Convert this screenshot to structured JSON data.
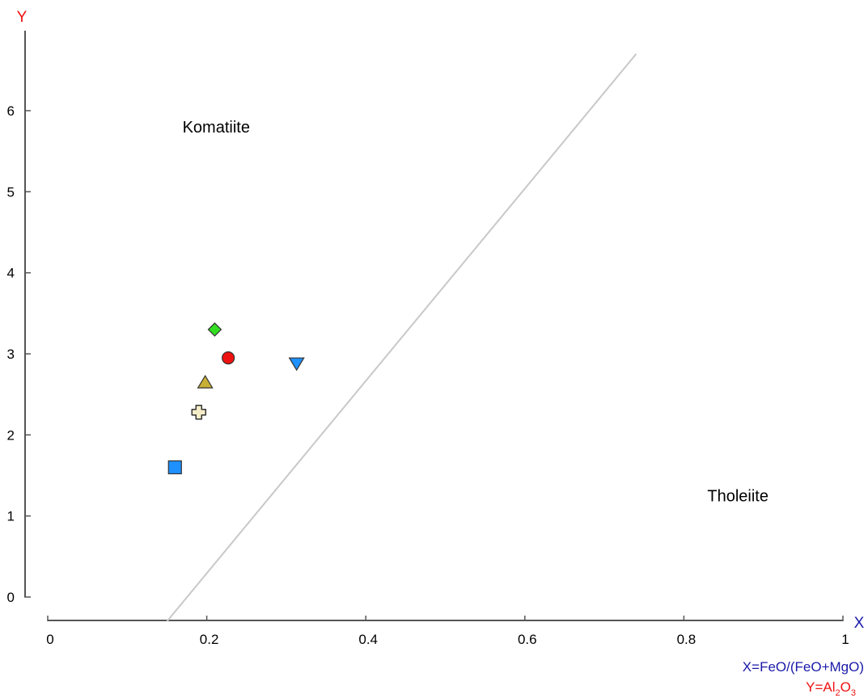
{
  "chart_data": {
    "type": "scatter",
    "title": "",
    "xlabel": "X",
    "ylabel": "Y",
    "xlim": [
      0,
      1
    ],
    "ylim": [
      0,
      7
    ],
    "x_ticks": [
      "0",
      "0.2",
      "0.4",
      "0.6",
      "0.8",
      "1"
    ],
    "y_ticks": [
      "0",
      "1",
      "2",
      "3",
      "4",
      "5",
      "6"
    ],
    "x_formula": "X=FeO/(FeO+MgO)",
    "y_formula": {
      "prefix": "Y=Al",
      "sub1": "2",
      "mid": "O",
      "sub2": "3"
    },
    "regions": [
      {
        "label": "Komatiite",
        "x": 0.2,
        "y": 5.8
      },
      {
        "label": "Tholeiite",
        "x": 0.86,
        "y": 1.25
      }
    ],
    "boundary_line": {
      "x": [
        0.15,
        0.74
      ],
      "y": [
        -0.3,
        6.7
      ],
      "color": "#c8c8c8"
    },
    "points": [
      {
        "x": 0.21,
        "y": 3.3,
        "marker": "diamond",
        "color": "#33dd22"
      },
      {
        "x": 0.227,
        "y": 2.95,
        "marker": "circle",
        "color": "#ee1111"
      },
      {
        "x": 0.313,
        "y": 2.88,
        "marker": "triangle-down",
        "color": "#1e90ff"
      },
      {
        "x": 0.198,
        "y": 2.65,
        "marker": "triangle-up",
        "color": "#c9b035"
      },
      {
        "x": 0.19,
        "y": 2.28,
        "marker": "cross",
        "color": "#f5edc8"
      },
      {
        "x": 0.16,
        "y": 1.6,
        "marker": "square",
        "color": "#1e90ff"
      }
    ],
    "grid": false,
    "colors": {
      "x_axis_label": "#1a1aaa",
      "y_axis_label": "#ee1111",
      "axis": "#555555"
    }
  }
}
